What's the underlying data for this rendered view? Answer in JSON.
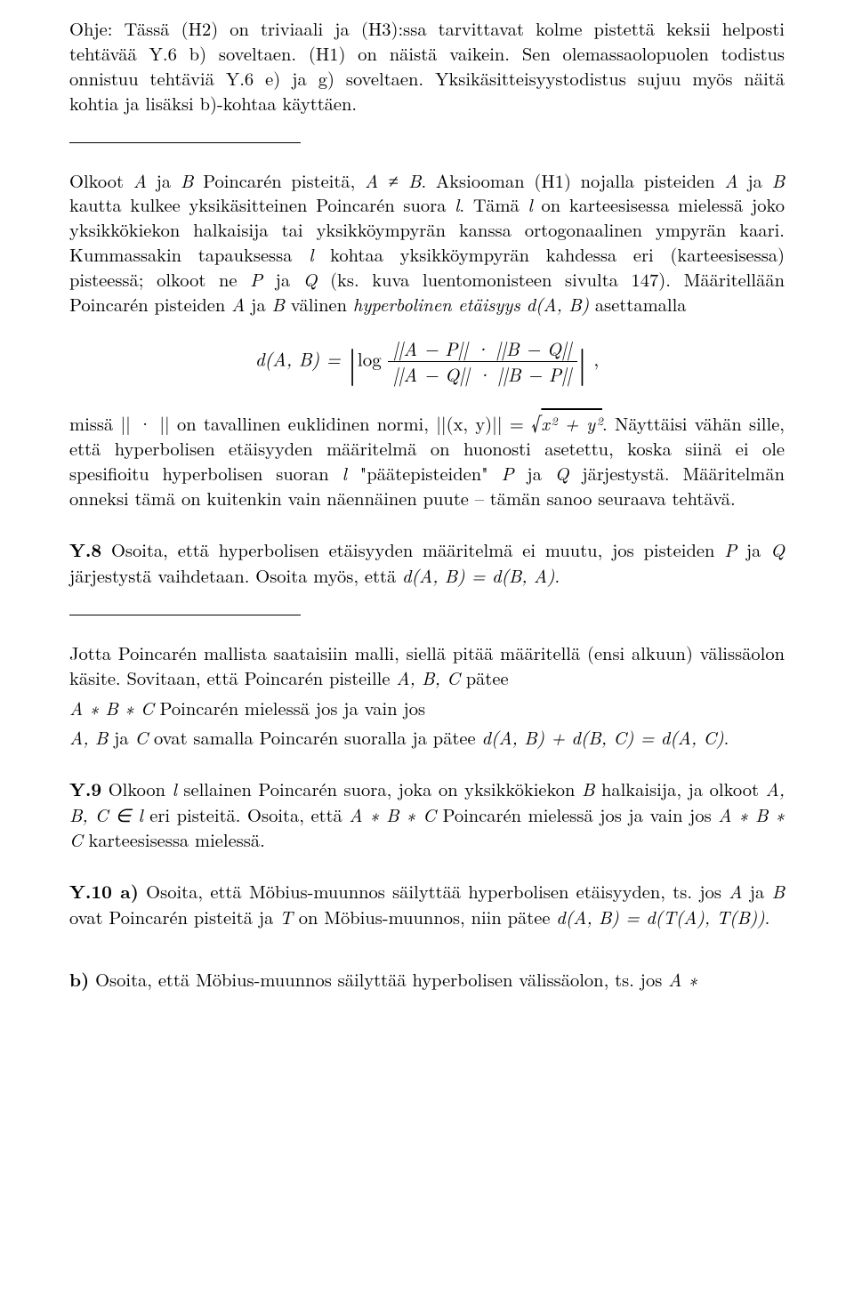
{
  "p1": "Ohje: Tässä (H2) on triviaali ja (H3):ssa tarvittavat kolme pistettä keksii helposti tehtävää Y.6 b) soveltaen. (H1) on näistä vaikein. Sen olemassaolopuolen todistus onnistuu tehtäviä Y.6 e) ja g) soveltaen. Yksikäsitteisyystodistus sujuu myös näitä kohtia ja lisäksi b)-kohtaa käyttäen.",
  "p2a": "Olkoot ",
  "p2b": " ja ",
  "p2c": " Poincarén pisteitä, ",
  "p2d": ". Aksiooman (H1) nojalla pisteiden ",
  "p2e": " ja ",
  "p2f": " kautta kulkee yksikäsitteinen Poincarén suora ",
  "p2g": ". Tämä ",
  "p2h": " on karteesisessa mielessä joko yksikkökiekon halkaisija tai yksikköympyrän kanssa ortogonaalinen ympyrän kaari. Kummassakin tapauksessa ",
  "p2i": " kohtaa yksikköympyrän kahdessa eri (karteesisessa) pisteessä; olkoot ne ",
  "p2j": " ja ",
  "p2k": " (ks. kuva luentomonisteen sivulta 147). Määritellään Poincarén pisteiden ",
  "p2l": " ja ",
  "p2m": " välinen ",
  "p2n": "hyperbolinen etäisyys",
  "p2o": " asettamalla",
  "var_A": "A",
  "var_B": "B",
  "var_l": "l",
  "var_P": "P",
  "var_Q": "Q",
  "A_neq_B": "A ≠ B",
  "dAB": "d(A, B)",
  "eq_lhs": "d(A, B) = ",
  "eq_log": "log",
  "eq_num": "||A − P|| · ||B − Q||",
  "eq_den": "||A − Q|| · ||B − P||",
  "eq_comma": ",",
  "p3a": "missä || · || on tavallinen euklidinen normi, ||(x, y)|| = ",
  "p3sqrt": "√",
  "p3sqrtarg": "x² + y²",
  "p3b": ". Näyttäisi vähän sille, että hyperbolisen etäisyyden määritelmä on huonosti asetettu, koska siinä ei ole spesifioitu hyperbolisen suoran ",
  "p3c": " \"päätepisteiden\" ",
  "p3d": " ja ",
  "p3e": " järjestystä. Määritelmän onneksi tämä on kuitenkin vain näennäinen puute – tämän sanoo seuraava tehtävä.",
  "y8_label": "Y.8",
  "y8a": " Osoita, että hyperbolisen etäisyyden määritelmä ei muutu, jos pisteiden ",
  "y8b": " ja ",
  "y8c": " järjestystä vaihdetaan. Osoita myös, että ",
  "y8d": "d(A, B) = d(B, A)",
  "y8e": ".",
  "p4a": "Jotta Poincarén mallista saataisiin malli, siellä pitää määritellä (ensi alkuun) välissäolon käsite. Sovitaan, että Poincarén pisteille ",
  "p4b": " pätee",
  "ABC_var": "A, B, C",
  "line1a": "A ∗ B ∗ C",
  "line1b": "  Poincarén mielessä jos ja vain jos",
  "line2a": "A, B",
  "line2b": " ja ",
  "line2c": "C",
  "line2d": " ovat samalla Poincarén suoralla ja pätee ",
  "line2e": "d(A, B) + d(B, C) = d(A, C)",
  "line2f": ".",
  "y9_label": "Y.9",
  "y9a": " Olkoon ",
  "y9b": " sellainen Poincarén suora, joka on yksikkökiekon ",
  "y9_Bvar": "B",
  "y9c": " halkaisija, ja olkoot ",
  "y9d": "A, B, C ∈ l",
  "y9e": " eri pisteitä. Osoita, että ",
  "y9f": "A ∗ B ∗ C",
  "y9g": " Poincarén mielessä jos ja vain jos ",
  "y9h": "A ∗ B ∗ C",
  "y9i": " karteesisessa mielessä.",
  "y10_label": "Y.10 a)",
  "y10a": " Osoita, että Möbius-muunnos säilyttää hyperbolisen etäisyyden, ts. jos ",
  "y10b": " ja ",
  "y10c": " ovat Poincarén pisteitä ja ",
  "y10_T": "T",
  "y10d": " on Möbius-muunnos, niin pätee ",
  "y10e": "d(A, B) = d(T(A), T(B))",
  "y10f": ".",
  "yb_label": "b)",
  "yb_a": " Osoita, että Möbius-muunnos säilyttää hyperbolisen välissäolon, ts. jos ",
  "yb_b": "A ∗"
}
